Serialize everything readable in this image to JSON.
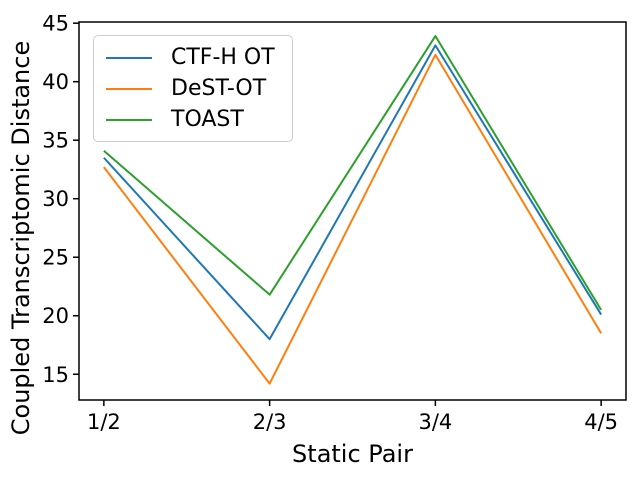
{
  "chart_data": {
    "type": "line",
    "xlabel": "Static Pair",
    "ylabel": "Coupled Transcriptomic Distance",
    "categories": [
      "1/2",
      "2/3",
      "3/4",
      "4/5"
    ],
    "series": [
      {
        "name": "CTF-H OT",
        "color": "#1f77b4",
        "values": [
          33.5,
          18.0,
          43.1,
          20.1
        ]
      },
      {
        "name": "DeST-OT",
        "color": "#ff7f0e",
        "values": [
          32.7,
          14.2,
          42.3,
          18.5
        ]
      },
      {
        "name": "TOAST",
        "color": "#2ca02c",
        "values": [
          34.1,
          21.8,
          43.9,
          20.5
        ]
      }
    ],
    "yticks": [
      15,
      20,
      25,
      30,
      35,
      40,
      45
    ],
    "ylim": [
      12.8,
      45.1
    ],
    "x_margin_fraction": 0.15,
    "grid": false,
    "legend_position": "upper left",
    "line_width": 2,
    "axis_color": "#000000",
    "text_color": "#000000",
    "background_color": "#ffffff"
  }
}
